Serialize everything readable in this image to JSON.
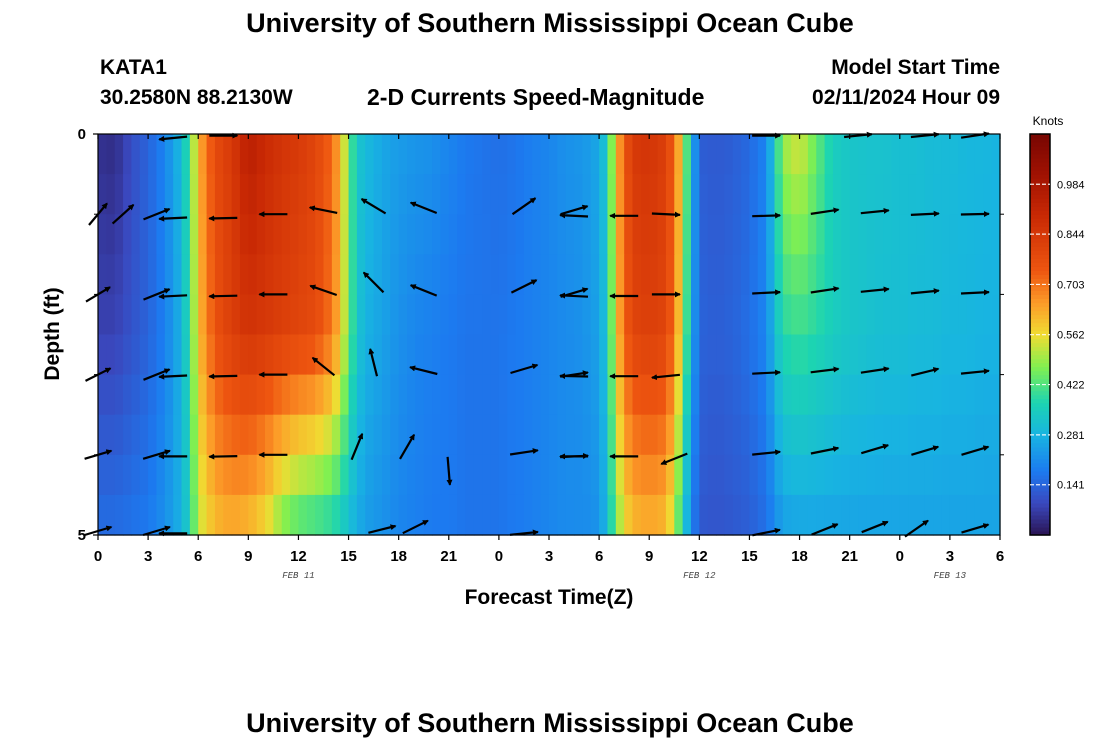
{
  "header": {
    "title": "University of Southern Mississippi Ocean Cube",
    "station_id": "KATA1",
    "station_coords": "30.2580N  88.2130W",
    "plot_title": "2-D Currents Speed-Magnitude",
    "start_label": "Model Start Time",
    "start_value": "02/11/2024 Hour 09"
  },
  "footer": {
    "title": "University of Southern Mississippi Ocean Cube"
  },
  "chart_data": {
    "type": "heatmap",
    "title": "2-D Currents Speed-Magnitude",
    "xlabel": "Forecast Time(Z)",
    "ylabel": "Depth (ft)",
    "x_range_hours": [
      0,
      54
    ],
    "y_range_ft": [
      0,
      5
    ],
    "x_ticks": [
      {
        "h": 0,
        "label": "0"
      },
      {
        "h": 3,
        "label": "3"
      },
      {
        "h": 6,
        "label": "6"
      },
      {
        "h": 9,
        "label": "9"
      },
      {
        "h": 12,
        "label": "12"
      },
      {
        "h": 15,
        "label": "15"
      },
      {
        "h": 18,
        "label": "18"
      },
      {
        "h": 21,
        "label": "21"
      },
      {
        "h": 24,
        "label": "0"
      },
      {
        "h": 27,
        "label": "3"
      },
      {
        "h": 30,
        "label": "6"
      },
      {
        "h": 33,
        "label": "9"
      },
      {
        "h": 36,
        "label": "12"
      },
      {
        "h": 39,
        "label": "15"
      },
      {
        "h": 42,
        "label": "18"
      },
      {
        "h": 45,
        "label": "21"
      },
      {
        "h": 48,
        "label": "0"
      },
      {
        "h": 51,
        "label": "3"
      },
      {
        "h": 54,
        "label": "6"
      }
    ],
    "y_ticks": [
      {
        "d": 0,
        "label": "0"
      },
      {
        "d": 5,
        "label": "5"
      }
    ],
    "date_labels": [
      {
        "h": 12,
        "label": "FEB 11"
      },
      {
        "h": 36,
        "label": "FEB 12"
      },
      {
        "h": 51,
        "label": "FEB 13"
      }
    ],
    "colorbar": {
      "title": "Knots",
      "min": 0.0,
      "max": 1.125,
      "ticks": [
        "0.984",
        "0.844",
        "0.703",
        "0.562",
        "0.422",
        "0.281",
        "0.141"
      ],
      "tick_values": [
        0.984,
        0.844,
        0.703,
        0.562,
        0.422,
        0.281,
        0.141
      ]
    },
    "depth_levels_ft": [
      0.25,
      1.0,
      2.0,
      3.0,
      4.0,
      4.75
    ],
    "speed_profile": {
      "hours": [
        0,
        1,
        2,
        3,
        4,
        5,
        5.5,
        6,
        7,
        8,
        9,
        10,
        11,
        12,
        13,
        14,
        14.5,
        15,
        15.5,
        16,
        17,
        18,
        19,
        20,
        21,
        22,
        23,
        24,
        25,
        26,
        27,
        28,
        29,
        30,
        30.5,
        31,
        31.5,
        32,
        33,
        34,
        34.5,
        35,
        35.5,
        36,
        37,
        38,
        39,
        40,
        40.5,
        41,
        42,
        43,
        44,
        45,
        46,
        47,
        48,
        49,
        50,
        51,
        52,
        53,
        54
      ],
      "surface": [
        0.05,
        0.04,
        0.1,
        0.14,
        0.2,
        0.3,
        0.42,
        0.62,
        0.78,
        0.84,
        0.95,
        0.9,
        0.86,
        0.84,
        0.8,
        0.72,
        0.62,
        0.45,
        0.33,
        0.3,
        0.26,
        0.24,
        0.23,
        0.22,
        0.2,
        0.18,
        0.17,
        0.16,
        0.17,
        0.19,
        0.2,
        0.22,
        0.23,
        0.26,
        0.35,
        0.6,
        0.74,
        0.84,
        0.86,
        0.82,
        0.72,
        0.55,
        0.3,
        0.13,
        0.12,
        0.13,
        0.15,
        0.2,
        0.34,
        0.5,
        0.55,
        0.45,
        0.35,
        0.33,
        0.32,
        0.32,
        0.31,
        0.31,
        0.3,
        0.3,
        0.29,
        0.29,
        0.28
      ],
      "middle": [
        0.08,
        0.08,
        0.11,
        0.14,
        0.19,
        0.28,
        0.4,
        0.6,
        0.76,
        0.82,
        0.86,
        0.84,
        0.82,
        0.8,
        0.78,
        0.7,
        0.6,
        0.45,
        0.33,
        0.28,
        0.25,
        0.22,
        0.2,
        0.19,
        0.18,
        0.17,
        0.17,
        0.17,
        0.18,
        0.19,
        0.2,
        0.21,
        0.22,
        0.25,
        0.33,
        0.58,
        0.72,
        0.8,
        0.82,
        0.8,
        0.7,
        0.52,
        0.28,
        0.14,
        0.13,
        0.14,
        0.16,
        0.2,
        0.3,
        0.38,
        0.4,
        0.38,
        0.35,
        0.33,
        0.32,
        0.31,
        0.31,
        0.3,
        0.3,
        0.29,
        0.29,
        0.28,
        0.28
      ],
      "bottom": [
        0.16,
        0.16,
        0.17,
        0.18,
        0.22,
        0.28,
        0.36,
        0.52,
        0.6,
        0.62,
        0.6,
        0.55,
        0.45,
        0.4,
        0.38,
        0.36,
        0.34,
        0.3,
        0.27,
        0.24,
        0.22,
        0.2,
        0.19,
        0.18,
        0.18,
        0.17,
        0.17,
        0.17,
        0.18,
        0.19,
        0.2,
        0.21,
        0.21,
        0.22,
        0.3,
        0.45,
        0.55,
        0.6,
        0.62,
        0.6,
        0.5,
        0.35,
        0.2,
        0.12,
        0.11,
        0.12,
        0.13,
        0.16,
        0.2,
        0.24,
        0.25,
        0.25,
        0.25,
        0.25,
        0.25,
        0.25,
        0.25,
        0.25,
        0.25,
        0.25,
        0.25,
        0.25,
        0.25
      ]
    },
    "vectors": [
      {
        "h": 0,
        "d": 1.0,
        "u": 1,
        "v": 1.2
      },
      {
        "h": 1.5,
        "d": 1.0,
        "u": 1,
        "v": 0.9
      },
      {
        "h": 3.5,
        "d": 1.0,
        "u": 1,
        "v": 0.4
      },
      {
        "h": 0,
        "d": 2.0,
        "u": 1,
        "v": 0.6
      },
      {
        "h": 3.5,
        "d": 2.0,
        "u": 1,
        "v": 0.4
      },
      {
        "h": 0,
        "d": 3.0,
        "u": 1,
        "v": 0.5
      },
      {
        "h": 3.5,
        "d": 3.0,
        "u": 1,
        "v": 0.4
      },
      {
        "h": 0,
        "d": 4.0,
        "u": 1,
        "v": 0.3
      },
      {
        "h": 3.5,
        "d": 4.0,
        "u": 1,
        "v": 0.3
      },
      {
        "h": 0,
        "d": 4.95,
        "u": 1,
        "v": 0.3
      },
      {
        "h": 3.5,
        "d": 4.95,
        "u": 1,
        "v": 0.3
      },
      {
        "h": 4.5,
        "d": 0.05,
        "u": -1,
        "v": -0.1
      },
      {
        "h": 7.5,
        "d": 0.02,
        "u": 1,
        "v": 0
      },
      {
        "h": 4.5,
        "d": 1.05,
        "u": -1,
        "v": -0.05
      },
      {
        "h": 7.5,
        "d": 1.05,
        "u": -1,
        "v": -0.02
      },
      {
        "h": 10.5,
        "d": 1.0,
        "u": -1,
        "v": 0
      },
      {
        "h": 13.5,
        "d": 0.95,
        "u": -1,
        "v": 0.2
      },
      {
        "h": 16.5,
        "d": 0.9,
        "u": -1,
        "v": 0.6
      },
      {
        "h": 19.5,
        "d": 0.92,
        "u": -1,
        "v": 0.4
      },
      {
        "h": 4.5,
        "d": 2.02,
        "u": -1,
        "v": -0.05
      },
      {
        "h": 7.5,
        "d": 2.02,
        "u": -1,
        "v": -0.02
      },
      {
        "h": 10.5,
        "d": 2.0,
        "u": -1,
        "v": 0
      },
      {
        "h": 13.5,
        "d": 1.95,
        "u": -1,
        "v": 0.35
      },
      {
        "h": 16.5,
        "d": 1.85,
        "u": -1,
        "v": 1
      },
      {
        "h": 19.5,
        "d": 1.95,
        "u": -1,
        "v": 0.4
      },
      {
        "h": 4.5,
        "d": 3.02,
        "u": -1,
        "v": -0.05
      },
      {
        "h": 7.5,
        "d": 3.02,
        "u": -1,
        "v": -0.02
      },
      {
        "h": 10.5,
        "d": 3.0,
        "u": -1,
        "v": 0
      },
      {
        "h": 13.5,
        "d": 2.9,
        "u": -1,
        "v": 0.8
      },
      {
        "h": 16.5,
        "d": 2.85,
        "u": -0.3,
        "v": 1.2
      },
      {
        "h": 19.5,
        "d": 2.95,
        "u": -1,
        "v": 0.25
      },
      {
        "h": 4.5,
        "d": 4.02,
        "u": -1,
        "v": 0
      },
      {
        "h": 7.5,
        "d": 4.02,
        "u": -1,
        "v": -0.02
      },
      {
        "h": 10.5,
        "d": 4.0,
        "u": -1,
        "v": 0
      },
      {
        "h": 15.5,
        "d": 3.9,
        "u": 0.45,
        "v": 1.1
      },
      {
        "h": 18.5,
        "d": 3.9,
        "u": 0.7,
        "v": 1.2
      },
      {
        "h": 21.0,
        "d": 4.2,
        "u": 0.1,
        "v": -1.2
      },
      {
        "h": 4.5,
        "d": 4.98,
        "u": -1,
        "v": 0
      },
      {
        "h": 17.0,
        "d": 4.93,
        "u": 1,
        "v": 0.25
      },
      {
        "h": 19.0,
        "d": 4.9,
        "u": 1,
        "v": 0.5
      },
      {
        "h": 25.5,
        "d": 0.9,
        "u": 1,
        "v": 0.7
      },
      {
        "h": 28.5,
        "d": 0.95,
        "u": 1,
        "v": 0.3
      },
      {
        "h": 25.5,
        "d": 1.9,
        "u": 1,
        "v": 0.5
      },
      {
        "h": 28.5,
        "d": 1.98,
        "u": 1,
        "v": 0.3
      },
      {
        "h": 25.5,
        "d": 2.93,
        "u": 1,
        "v": 0.3
      },
      {
        "h": 28.5,
        "d": 3.0,
        "u": 1,
        "v": 0.15
      },
      {
        "h": 25.5,
        "d": 3.97,
        "u": 1,
        "v": 0.15
      },
      {
        "h": 28.5,
        "d": 4.02,
        "u": 1,
        "v": 0.05
      },
      {
        "h": 25.5,
        "d": 4.98,
        "u": 1,
        "v": 0.1
      },
      {
        "h": 28.5,
        "d": 1.02,
        "u": -1,
        "v": 0.05
      },
      {
        "h": 28.5,
        "d": 2.02,
        "u": -1,
        "v": 0.05
      },
      {
        "h": 28.5,
        "d": 3.02,
        "u": -1,
        "v": 0.02
      },
      {
        "h": 28.5,
        "d": 4.02,
        "u": -1,
        "v": 0
      },
      {
        "h": 31.5,
        "d": 1.02,
        "u": -1,
        "v": 0
      },
      {
        "h": 34.0,
        "d": 1.0,
        "u": 1,
        "v": -0.05
      },
      {
        "h": 31.5,
        "d": 2.02,
        "u": -1,
        "v": 0
      },
      {
        "h": 34.0,
        "d": 2.0,
        "u": 1,
        "v": 0
      },
      {
        "h": 31.5,
        "d": 3.02,
        "u": -1,
        "v": 0
      },
      {
        "h": 34.0,
        "d": 3.02,
        "u": -1,
        "v": -0.1
      },
      {
        "h": 31.5,
        "d": 4.02,
        "u": -1,
        "v": 0
      },
      {
        "h": 34.5,
        "d": 4.05,
        "u": -1,
        "v": -0.4
      },
      {
        "h": 40.0,
        "d": 0.02,
        "u": 1,
        "v": 0
      },
      {
        "h": 40.0,
        "d": 1.02,
        "u": 1,
        "v": 0.03
      },
      {
        "h": 43.5,
        "d": 0.97,
        "u": 1,
        "v": 0.15
      },
      {
        "h": 46.5,
        "d": 0.97,
        "u": 1,
        "v": 0.1
      },
      {
        "h": 49.5,
        "d": 1.0,
        "u": 1,
        "v": 0.05
      },
      {
        "h": 52.5,
        "d": 1.0,
        "u": 1,
        "v": 0.02
      },
      {
        "h": 40.0,
        "d": 1.98,
        "u": 1,
        "v": 0.05
      },
      {
        "h": 43.5,
        "d": 1.95,
        "u": 1,
        "v": 0.15
      },
      {
        "h": 46.5,
        "d": 1.95,
        "u": 1,
        "v": 0.1
      },
      {
        "h": 49.5,
        "d": 1.97,
        "u": 1,
        "v": 0.1
      },
      {
        "h": 52.5,
        "d": 1.98,
        "u": 1,
        "v": 0.05
      },
      {
        "h": 40.0,
        "d": 2.98,
        "u": 1,
        "v": 0.05
      },
      {
        "h": 43.5,
        "d": 2.95,
        "u": 1,
        "v": 0.12
      },
      {
        "h": 46.5,
        "d": 2.95,
        "u": 1,
        "v": 0.15
      },
      {
        "h": 49.5,
        "d": 2.97,
        "u": 1,
        "v": 0.25
      },
      {
        "h": 52.5,
        "d": 2.97,
        "u": 1,
        "v": 0.1
      },
      {
        "h": 40.0,
        "d": 3.98,
        "u": 1,
        "v": 0.1
      },
      {
        "h": 43.5,
        "d": 3.95,
        "u": 1,
        "v": 0.2
      },
      {
        "h": 46.5,
        "d": 3.93,
        "u": 1,
        "v": 0.3
      },
      {
        "h": 49.5,
        "d": 3.95,
        "u": 1,
        "v": 0.3
      },
      {
        "h": 52.5,
        "d": 3.95,
        "u": 1,
        "v": 0.3
      },
      {
        "h": 40.0,
        "d": 4.97,
        "u": 1,
        "v": 0.2
      },
      {
        "h": 43.5,
        "d": 4.93,
        "u": 1,
        "v": 0.4
      },
      {
        "h": 46.5,
        "d": 4.9,
        "u": 1,
        "v": 0.4
      },
      {
        "h": 49.0,
        "d": 4.92,
        "u": 1,
        "v": 0.7
      },
      {
        "h": 52.5,
        "d": 4.92,
        "u": 1,
        "v": 0.3
      },
      {
        "h": 45.5,
        "d": 0.02,
        "u": 1,
        "v": 0.1
      },
      {
        "h": 49.5,
        "d": 0.02,
        "u": 1,
        "v": 0.1
      },
      {
        "h": 52.5,
        "d": 0.02,
        "u": 1,
        "v": 0.15
      }
    ]
  }
}
